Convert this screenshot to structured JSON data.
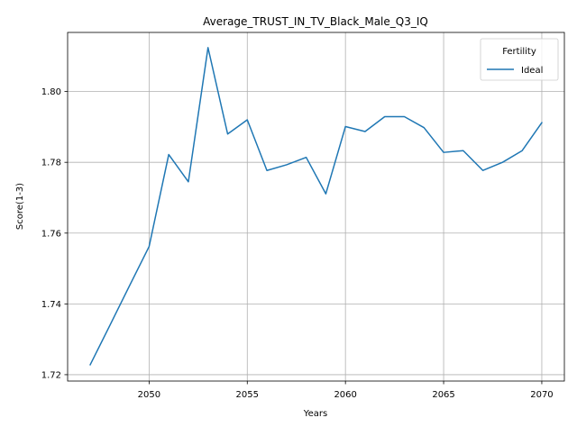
{
  "chart_data": {
    "type": "line",
    "title": "Average_TRUST_IN_TV_Black_Male_Q3_IQ",
    "xlabel": "Years",
    "ylabel": "Score(1-3)",
    "xlim": [
      2045.85,
      2071.15
    ],
    "ylim": [
      1.7182,
      1.8167
    ],
    "x_ticks": [
      2050,
      2055,
      2060,
      2065,
      2070
    ],
    "y_ticks": [
      1.72,
      1.74,
      1.76,
      1.78,
      1.8
    ],
    "y_tick_labels": [
      "1.72",
      "1.74",
      "1.76",
      "1.78",
      "1.80"
    ],
    "grid": true,
    "legend": {
      "title": "Fertility",
      "placement": "top-right"
    },
    "series": [
      {
        "name": "Ideal",
        "color": "#1f77b4",
        "x": [
          2047,
          2048,
          2049,
          2050,
          2051,
          2052,
          2053,
          2054,
          2055,
          2056,
          2057,
          2058,
          2059,
          2060,
          2061,
          2062,
          2063,
          2064,
          2065,
          2066,
          2067,
          2068,
          2069,
          2070
        ],
        "values": [
          1.7228,
          1.7339,
          1.7451,
          1.7562,
          1.7822,
          1.7745,
          1.8124,
          1.788,
          1.792,
          1.7777,
          1.7793,
          1.7814,
          1.7711,
          1.7901,
          1.7887,
          1.7929,
          1.7929,
          1.7898,
          1.7828,
          1.7833,
          1.7777,
          1.78,
          1.7833,
          1.7912
        ]
      }
    ]
  }
}
